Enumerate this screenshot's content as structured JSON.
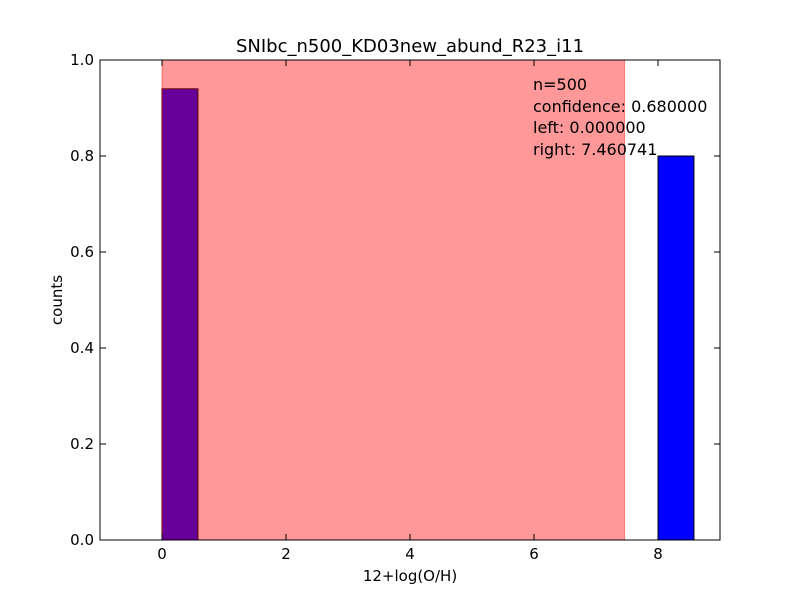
{
  "chart_data": {
    "type": "bar",
    "title": "SNIbc_n500_KD03new_abund_R23_i11",
    "xlabel": "12+log(O/H)",
    "ylabel": "counts",
    "xlim": [
      -1,
      9
    ],
    "ylim": [
      0,
      1.0
    ],
    "x_ticks": [
      0,
      2,
      4,
      6,
      8
    ],
    "x_tick_labels": [
      "0",
      "2",
      "4",
      "6",
      "8"
    ],
    "y_ticks": [
      0.0,
      0.2,
      0.4,
      0.6,
      0.8,
      1.0
    ],
    "y_tick_labels": [
      "0.0",
      "0.2",
      "0.4",
      "0.6",
      "0.8",
      "1.0"
    ],
    "grid": false,
    "shaded_region": {
      "left": 0.0,
      "right": 7.460741,
      "color": "#ff0000",
      "opacity": 0.4
    },
    "series": [
      {
        "bars": [
          {
            "x_start": 0.0,
            "x_end": 0.58,
            "value": 0.94,
            "color": "#0000ff"
          },
          {
            "x_start": 8.0,
            "x_end": 8.58,
            "value": 0.8,
            "color": "#0000ff"
          }
        ]
      }
    ],
    "annotation_lines": [
      "n=500",
      "confidence: 0.680000",
      "left: 0.000000",
      "right: 7.460741"
    ]
  },
  "colors": {
    "bar": "#0000ff",
    "shade": "#ff0000",
    "axis": "#000000"
  }
}
